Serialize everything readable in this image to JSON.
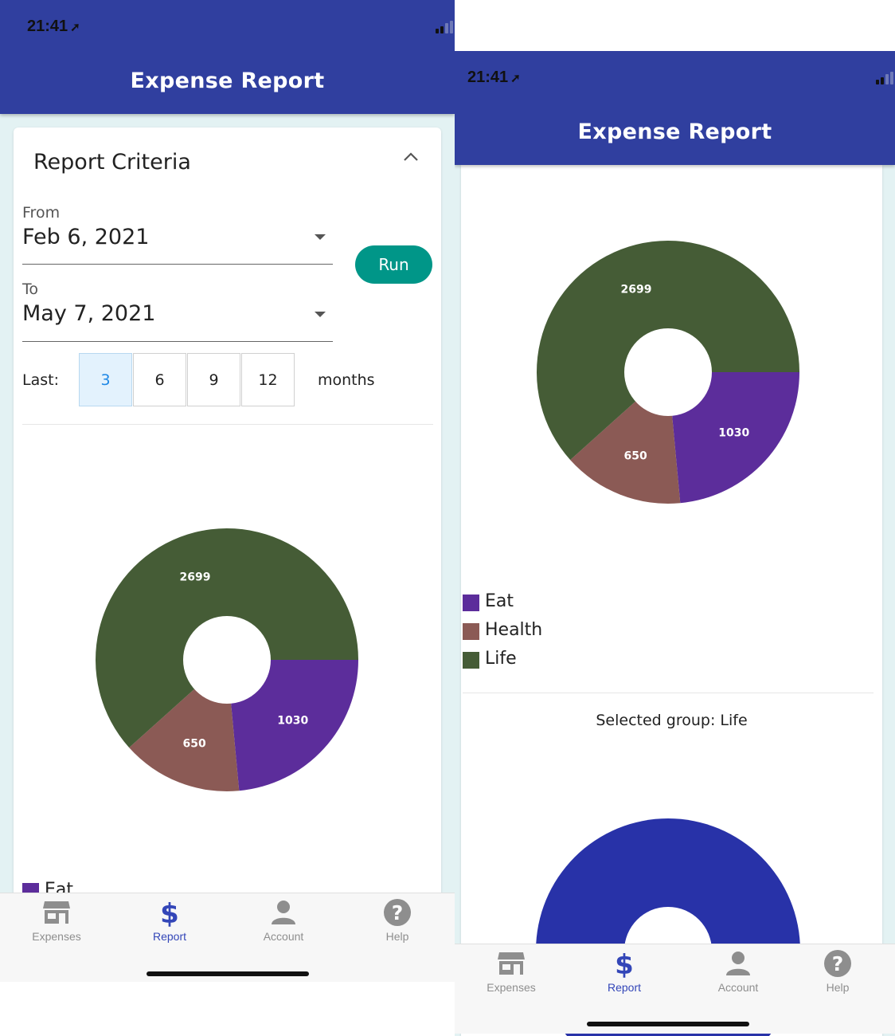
{
  "status": {
    "time": "21:41",
    "location_icon": "location-arrow-icon"
  },
  "app": {
    "title": "Expense Report",
    "brand_color": "#303f9f"
  },
  "criteria": {
    "title": "Report Criteria",
    "from_label": "From",
    "from_value": "Feb 6, 2021",
    "to_label": "To",
    "to_value": "May 7, 2021",
    "run_label": "Run",
    "last_label": "Last:",
    "last_options": [
      "3",
      "6",
      "9",
      "12"
    ],
    "last_selected": "3",
    "months_label": "months"
  },
  "chart_data": {
    "type": "pie",
    "donut": true,
    "categories": [
      "Eat",
      "Health",
      "Life"
    ],
    "values": [
      1030,
      650,
      2699
    ],
    "colors": [
      "#5c2d9b",
      "#8b5a55",
      "#455c36"
    ]
  },
  "legend": [
    {
      "label": "Eat",
      "color": "#5c2d9b"
    },
    {
      "label": "Health",
      "color": "#8b5a55"
    },
    {
      "label": "Life",
      "color": "#455c36"
    }
  ],
  "selection": {
    "text": "Selected group: Life",
    "group_color": "#2832a8"
  },
  "tabs": [
    {
      "label": "Expenses",
      "icon": "store-icon",
      "active": false
    },
    {
      "label": "Report",
      "icon": "dollar-icon",
      "active": true
    },
    {
      "label": "Account",
      "icon": "person-icon",
      "active": false
    },
    {
      "label": "Help",
      "icon": "help-icon",
      "active": false
    }
  ],
  "colors": {
    "accent": "#009688",
    "tab_active": "#3346b8",
    "tab_inactive": "#8e8e8e"
  }
}
